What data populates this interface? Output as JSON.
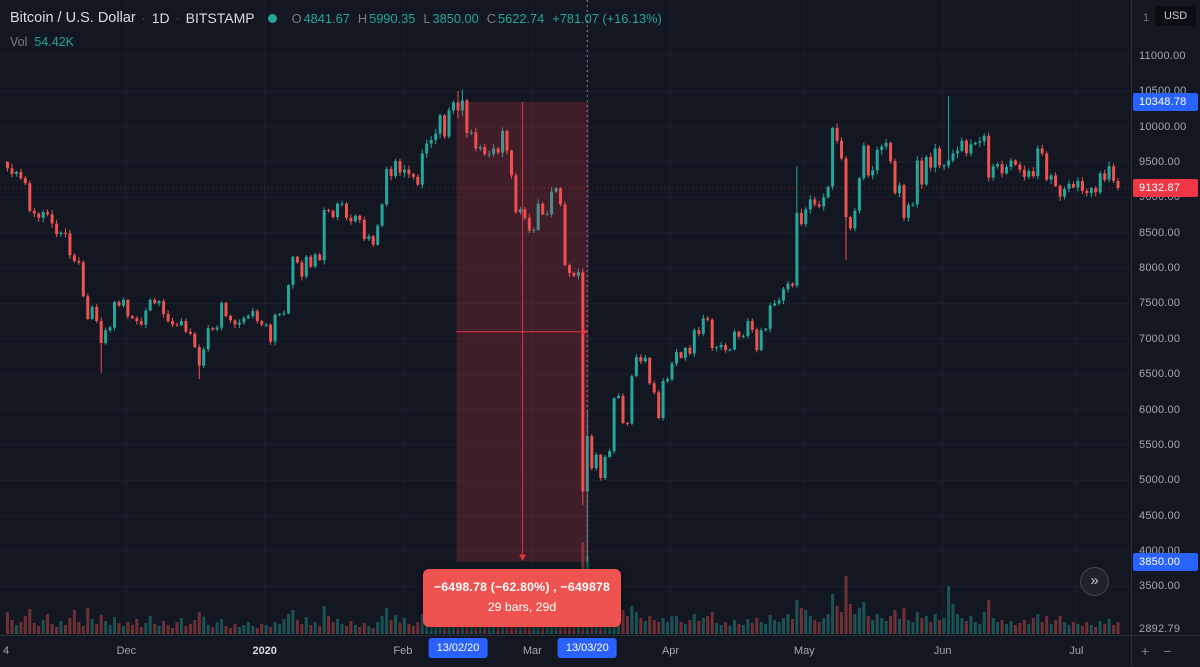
{
  "header": {
    "title": "Bitcoin / U.S. Dollar",
    "sep": "·",
    "interval": "1D",
    "exchange": "BITSTAMP",
    "ohlc": {
      "o_label": "O",
      "o": "4841.67",
      "h_label": "H",
      "h": "5990.35",
      "l_label": "L",
      "l": "3850.00",
      "c_label": "C",
      "c": "5622.74",
      "change": "+781.07 (+16.13%)"
    },
    "vol_label": "Vol",
    "vol_value": "54.42K"
  },
  "price_axis": {
    "scale_number": "1",
    "currency": "USD",
    "labels": [
      {
        "text": "11000.00",
        "price": 11000
      },
      {
        "text": "10500.00",
        "price": 10500
      },
      {
        "text": "10000.00",
        "price": 10000
      },
      {
        "text": "9500.00",
        "price": 9500
      },
      {
        "text": "9000.00",
        "price": 9000
      },
      {
        "text": "8500.00",
        "price": 8500
      },
      {
        "text": "8000.00",
        "price": 8000
      },
      {
        "text": "7500.00",
        "price": 7500
      },
      {
        "text": "7000.00",
        "price": 7000
      },
      {
        "text": "6500.00",
        "price": 6500
      },
      {
        "text": "6000.00",
        "price": 6000
      },
      {
        "text": "5500.00",
        "price": 5500
      },
      {
        "text": "5000.00",
        "price": 5000
      },
      {
        "text": "4500.00",
        "price": 4500
      },
      {
        "text": "4000.00",
        "price": 4000
      },
      {
        "text": "3500.00",
        "price": 3500
      },
      {
        "text": "2892.79",
        "price": 2892.79
      }
    ],
    "badges": [
      {
        "text": "10348.78",
        "price": 10348.78,
        "bg": "#2962ff"
      },
      {
        "text": "9132.87",
        "price": 9132.87,
        "bg": "#f23645"
      },
      {
        "text": "3850.00",
        "price": 3850,
        "bg": "#2962ff"
      }
    ]
  },
  "time_axis": {
    "labels": [
      {
        "text": "4",
        "i": 0
      },
      {
        "text": "Dec",
        "i": 27
      },
      {
        "text": "2020",
        "i": 58,
        "year": true
      },
      {
        "text": "Feb",
        "i": 89
      },
      {
        "text": "Mar",
        "i": 118
      },
      {
        "text": "Apr",
        "i": 149
      },
      {
        "text": "May",
        "i": 179
      },
      {
        "text": "Jun",
        "i": 210
      },
      {
        "text": "Jul",
        "i": 240
      }
    ],
    "date_badges": [
      {
        "text": "13/02/20",
        "i": 101
      },
      {
        "text": "13/03/20",
        "i": 130
      }
    ]
  },
  "measure_tool": {
    "start_i": 101,
    "end_i": 130,
    "start_price": 10348.78,
    "end_price": 3850.0,
    "color": "#f23645",
    "line1": "−6498.78 (−62.80%) , −649878",
    "line2": "29 bars, 29d"
  },
  "goto_button": {
    "icon": "»"
  },
  "corner": {
    "zoom_in": "+",
    "zoom_out": "−"
  },
  "chart_data": {
    "type": "candlestick",
    "title": "Bitcoin / U.S. Dollar, 1D, BITSTAMP",
    "x_tick_labels": [
      "4",
      "Dec",
      "2020",
      "Feb",
      "Mar",
      "Apr",
      "May",
      "Jun",
      "Jul"
    ],
    "y_ticks": [
      11000,
      10500,
      10000,
      9500,
      9000,
      8500,
      8000,
      7500,
      7000,
      6500,
      6000,
      5500,
      5000,
      4500,
      4000,
      3500
    ],
    "y_bottom_label": 2892.79,
    "last_price": 9132.87,
    "colors": {
      "up": "#26a69a",
      "down": "#ef5350"
    },
    "candles": {
      "first_open": 9500,
      "closes": [
        9410,
        9330,
        9360,
        9270,
        9200,
        8810,
        8770,
        8710,
        8790,
        8760,
        8630,
        8480,
        8500,
        8490,
        8180,
        8100,
        8080,
        7600,
        7280,
        7450,
        7250,
        6940,
        7120,
        7160,
        7520,
        7470,
        7550,
        7320,
        7290,
        7250,
        7200,
        7400,
        7550,
        7500,
        7530,
        7350,
        7250,
        7200,
        7190,
        7250,
        7100,
        7070,
        6880,
        6620,
        6850,
        7150,
        7130,
        7160,
        7510,
        7320,
        7260,
        7200,
        7230,
        7290,
        7320,
        7390,
        7250,
        7200,
        7200,
        6960,
        7340,
        7350,
        7360,
        7760,
        8160,
        8080,
        7880,
        8160,
        8020,
        8190,
        8110,
        8820,
        8810,
        8720,
        8910,
        8910,
        8710,
        8660,
        8740,
        8680,
        8410,
        8450,
        8330,
        8600,
        8900,
        9400,
        9300,
        9510,
        9350,
        9390,
        9330,
        9290,
        9180,
        9620,
        9760,
        9810,
        9900,
        10160,
        9860,
        10230,
        10340,
        10230,
        10370,
        9910,
        9920,
        9690,
        9710,
        9610,
        9610,
        9690,
        9630,
        9940,
        9660,
        9310,
        8790,
        8830,
        8710,
        8530,
        8540,
        8910,
        8760,
        8760,
        9080,
        9130,
        8900,
        8040,
        7930,
        7890,
        7940,
        4841,
        5622,
        5170,
        5360,
        5030,
        5330,
        5410,
        6160,
        6190,
        5810,
        5800,
        6470,
        6740,
        6680,
        6730,
        6370,
        6240,
        5880,
        6400,
        6430,
        6650,
        6810,
        6730,
        6870,
        6790,
        7120,
        7070,
        7290,
        7270,
        6870,
        6880,
        6910,
        6840,
        6850,
        7100,
        7030,
        7040,
        7250,
        7130,
        6840,
        7120,
        7140,
        7470,
        7500,
        7540,
        7700,
        7780,
        7750,
        8780,
        8620,
        8830,
        8970,
        8900,
        8870,
        9000,
        9150,
        9980,
        9800,
        9550,
        8720,
        8560,
        8810,
        9270,
        9730,
        9310,
        9380,
        9670,
        9720,
        9770,
        9510,
        9060,
        9170,
        8710,
        8890,
        8900,
        9520,
        9180,
        9570,
        9420,
        9690,
        9450,
        9450,
        9520,
        9620,
        9660,
        9800,
        9620,
        9750,
        9770,
        9790,
        9870,
        9280,
        9440,
        9470,
        9340,
        9430,
        9520,
        9460,
        9390,
        9290,
        9370,
        9300,
        9690,
        9620,
        9250,
        9310,
        9160,
        9010,
        9120,
        9190,
        9140,
        9230,
        9090,
        9060,
        9130,
        9070,
        9340,
        9250,
        9440,
        9230,
        9133
      ],
      "ohlc_overrides": {
        "21": [
          7250,
          7300,
          6520,
          6940
        ],
        "43": [
          6880,
          6920,
          6430,
          6620
        ],
        "101": [
          10340,
          10500,
          10120,
          10230
        ],
        "102": [
          10230,
          10520,
          10150,
          10370
        ],
        "129": [
          7940,
          7990,
          4650,
          4841
        ],
        "130": [
          4841.67,
          5990.35,
          3850.0,
          5622.74
        ],
        "177": [
          7750,
          9440,
          7720,
          8780
        ],
        "188": [
          9550,
          9580,
          8110,
          8720
        ],
        "211": [
          9450,
          10430,
          9410,
          9520
        ]
      }
    },
    "volumes": [
      22,
      14,
      9,
      12,
      18,
      25,
      11,
      8,
      14,
      20,
      10,
      7,
      13,
      9,
      16,
      24,
      12,
      8,
      26,
      15,
      10,
      19,
      13,
      9,
      17,
      11,
      8,
      12,
      9,
      15,
      7,
      11,
      18,
      10,
      8,
      13,
      9,
      6,
      12,
      16,
      8,
      10,
      14,
      22,
      17,
      9,
      7,
      12,
      15,
      8,
      6,
      10,
      7,
      9,
      12,
      8,
      6,
      10,
      9,
      7,
      12,
      10,
      15,
      20,
      24,
      14,
      10,
      17,
      9,
      12,
      8,
      28,
      18,
      12,
      15,
      10,
      8,
      13,
      9,
      7,
      11,
      8,
      6,
      12,
      18,
      26,
      14,
      19,
      11,
      16,
      10,
      8,
      12,
      20,
      15,
      11,
      13,
      24,
      14,
      19,
      22,
      26,
      21,
      15,
      10,
      8,
      12,
      9,
      7,
      10,
      8,
      15,
      11,
      18,
      25,
      13,
      10,
      16,
      22,
      18,
      12,
      9,
      16,
      13,
      10,
      20,
      15,
      11,
      14,
      92,
      78,
      55,
      40,
      30,
      26,
      20,
      32,
      32,
      24,
      18,
      28,
      22,
      16,
      13,
      18,
      14,
      12,
      16,
      12,
      18,
      18,
      12,
      10,
      14,
      20,
      13,
      16,
      18,
      22,
      11,
      9,
      12,
      8,
      14,
      10,
      9,
      15,
      11,
      16,
      12,
      10,
      19,
      14,
      12,
      16,
      20,
      15,
      34,
      26,
      24,
      18,
      14,
      12,
      16,
      20,
      40,
      28,
      22,
      58,
      30,
      20,
      26,
      32,
      18,
      14,
      20,
      16,
      13,
      18,
      24,
      15,
      26,
      14,
      12,
      22,
      16,
      18,
      12,
      20,
      14,
      16,
      48,
      30,
      20,
      16,
      13,
      18,
      12,
      10,
      22,
      34,
      16,
      12,
      14,
      10,
      13,
      9,
      11,
      14,
      10,
      16,
      20,
      12,
      18,
      10,
      14,
      18,
      12,
      9,
      12,
      10,
      8,
      12,
      9,
      7,
      13,
      10,
      15,
      9,
      12
    ]
  }
}
